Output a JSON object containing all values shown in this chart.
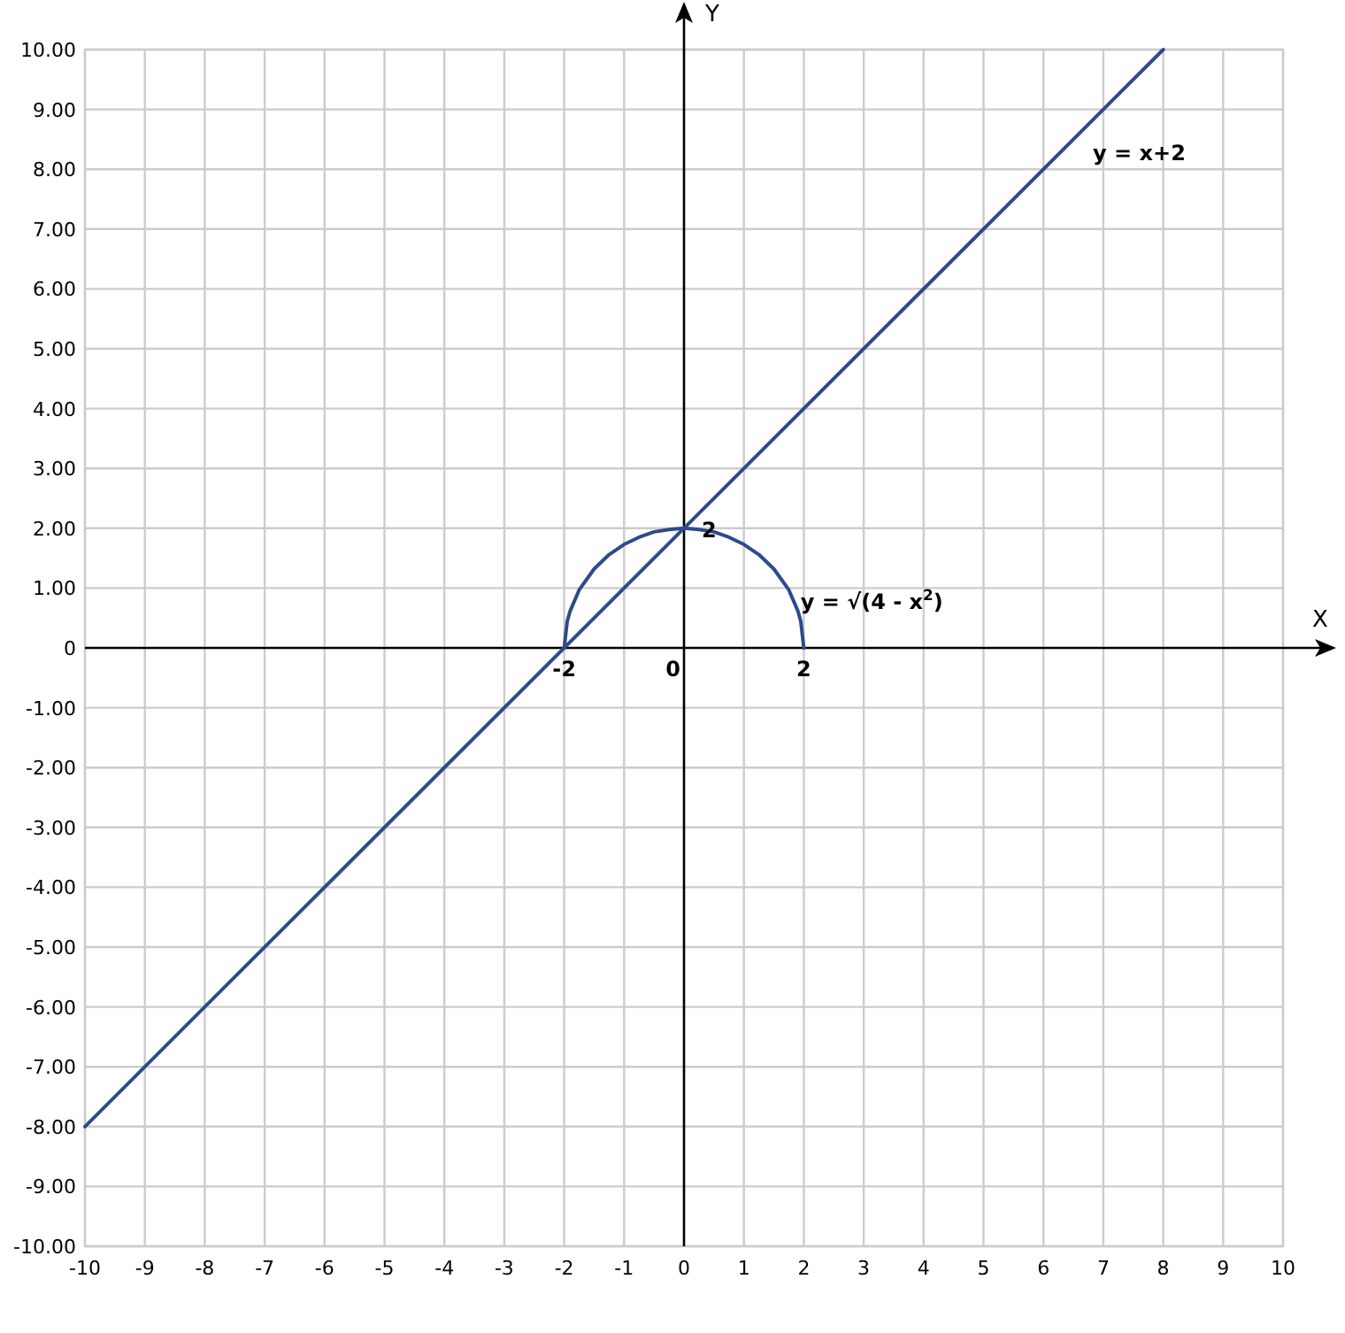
{
  "chart_data": {
    "type": "line",
    "xlabel": "X",
    "ylabel": "Y",
    "xlim": [
      -10,
      10
    ],
    "xticks": [
      -10,
      -9,
      -8,
      -7,
      -6,
      -5,
      -4,
      -3,
      -2,
      -1,
      0,
      1,
      2,
      3,
      4,
      5,
      6,
      7,
      8,
      9,
      10
    ],
    "ylim": [
      -10,
      10
    ],
    "yticks": [
      {
        "value": -10,
        "label": "-10.00"
      },
      {
        "value": -9,
        "label": "-9.00"
      },
      {
        "value": -8,
        "label": "-8.00"
      },
      {
        "value": -7,
        "label": "-7.00"
      },
      {
        "value": -6,
        "label": "-6.00"
      },
      {
        "value": -5,
        "label": "-5.00"
      },
      {
        "value": -4,
        "label": "-4.00"
      },
      {
        "value": -3,
        "label": "-3.00"
      },
      {
        "value": -2,
        "label": "-2.00"
      },
      {
        "value": -1,
        "label": "-1.00"
      },
      0,
      {
        "value": 1,
        "label": "1.00"
      },
      {
        "value": 2,
        "label": "2.00"
      },
      {
        "value": 3,
        "label": "3.00"
      },
      {
        "value": 4,
        "label": "4.00"
      },
      {
        "value": 5,
        "label": "5.00"
      },
      {
        "value": 6,
        "label": "6.00"
      },
      {
        "value": 7,
        "label": "7.00"
      },
      {
        "value": 8,
        "label": "8.00"
      },
      {
        "value": 9,
        "label": "9.00"
      },
      {
        "value": 10,
        "label": "10.00"
      }
    ],
    "grid": true,
    "legend": false,
    "marker": "none",
    "line_style": "solid",
    "series": [
      {
        "name": "y = x+2",
        "color": "#2e4a8c",
        "x": [
          -10,
          8
        ],
        "values": [
          -8,
          10
        ]
      },
      {
        "name": "y = √(4 - x$^{2}$)",
        "color": "#2e4a8c",
        "x": [
          -2,
          -1.95,
          -1.9,
          -1.75,
          -1.5,
          -1.25,
          -1,
          -0.75,
          -0.5,
          -0.25,
          0,
          0.25,
          0.5,
          0.75,
          1,
          1.25,
          1.5,
          1.75,
          1.9,
          1.95,
          2
        ],
        "values": [
          0,
          0.44,
          0.62,
          0.97,
          1.32,
          1.56,
          1.73,
          1.85,
          1.94,
          1.98,
          2,
          1.98,
          1.94,
          1.85,
          1.73,
          1.56,
          1.32,
          0.97,
          0.62,
          0.44,
          0
        ]
      }
    ],
    "annotations": [
      "0",
      {
        "text": "-2",
        "x": -2,
        "y": 0
      },
      {
        "text": "2",
        "x": 2,
        "y": 0
      },
      {
        "text": "2",
        "x": 0,
        "y": 2
      }
    ]
  }
}
